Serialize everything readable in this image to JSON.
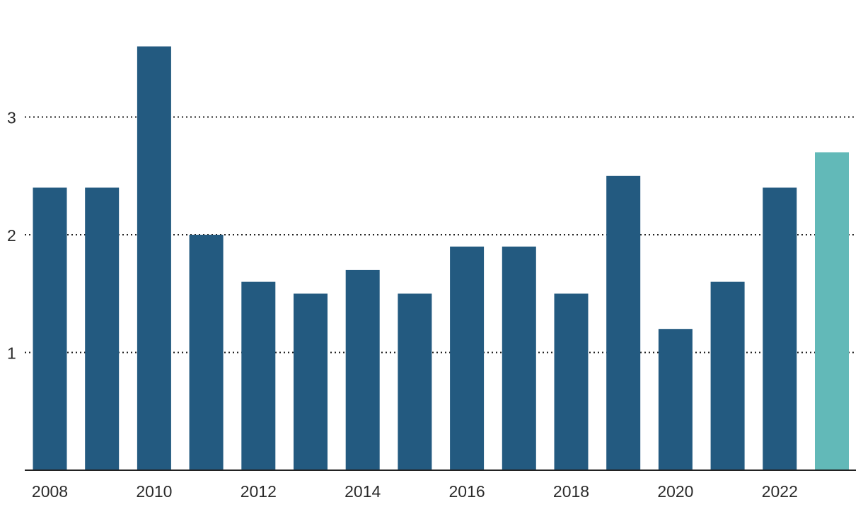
{
  "chart_data": {
    "type": "bar",
    "categories": [
      "2008",
      "2009",
      "2010",
      "2011",
      "2012",
      "2013",
      "2014",
      "2015",
      "2016",
      "2017",
      "2018",
      "2019",
      "2020",
      "2021",
      "2022",
      "2023"
    ],
    "values": [
      2.4,
      2.4,
      3.6,
      2.0,
      1.6,
      1.5,
      1.7,
      1.5,
      1.9,
      1.9,
      1.5,
      2.5,
      1.2,
      1.6,
      2.4,
      2.7
    ],
    "x_tick_labels": [
      "2008",
      "2010",
      "2012",
      "2014",
      "2016",
      "2018",
      "2020",
      "2022"
    ],
    "y_ticks": [
      1,
      2,
      3
    ],
    "ylim": [
      0,
      4
    ],
    "grid": "dotted horizontal",
    "title": "",
    "xlabel": "",
    "ylabel": "",
    "colors": {
      "bar": "#235a80",
      "highlight": "#62b9b8",
      "axis": "#222222",
      "grid": "#222222"
    },
    "highlighted_category": "2023"
  }
}
